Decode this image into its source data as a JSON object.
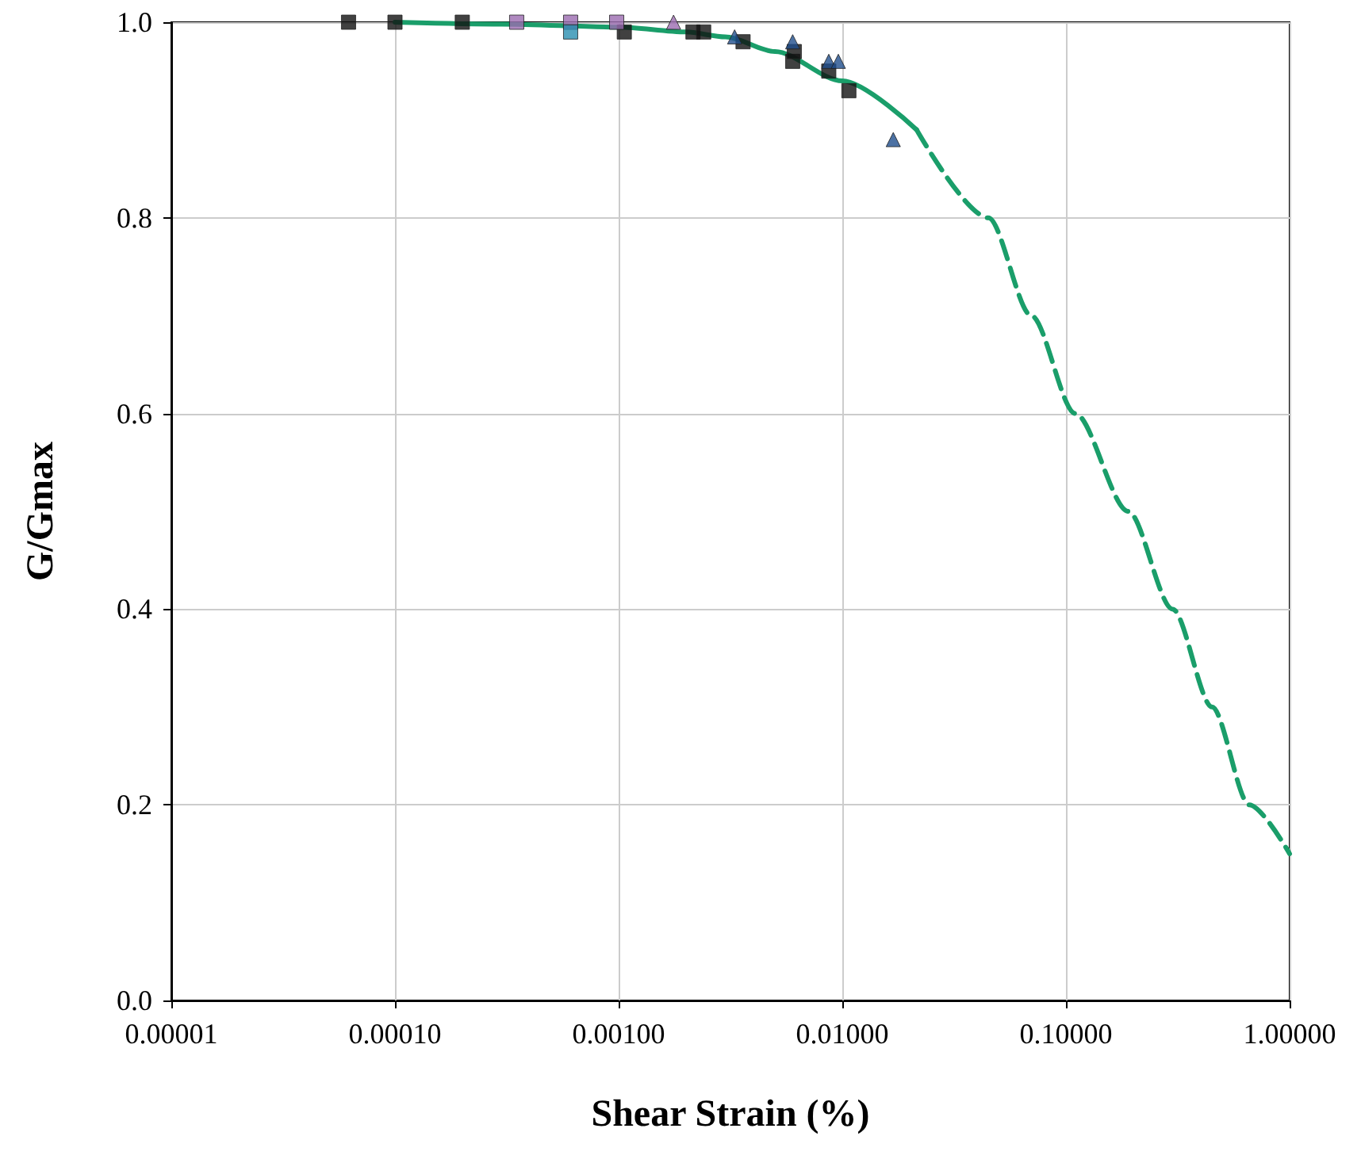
{
  "chart_data": {
    "type": "scatter",
    "xlabel": "Shear Strain (%)",
    "ylabel": "G/Gmax",
    "log": "x",
    "grid": true,
    "xlim": [
      1e-05,
      1
    ],
    "xticks": [
      {
        "value": 1e-05,
        "label": "0.00001"
      },
      {
        "value": 0.0001,
        "label": "0.00010"
      },
      {
        "value": 0.001,
        "label": "0.00100"
      },
      {
        "value": 0.01,
        "label": "0.01000"
      },
      {
        "value": 0.1,
        "label": "0.10000"
      },
      {
        "value": 1,
        "label": "1.00000"
      }
    ],
    "ylim": [
      0,
      1
    ],
    "yticks": [
      {
        "value": 0,
        "label": "0.0"
      },
      {
        "value": 0.2,
        "label": "0.2"
      },
      {
        "value": 0.4,
        "label": "0.4"
      },
      {
        "value": 0.6,
        "label": "0.6"
      },
      {
        "value": 0.8,
        "label": "0.8"
      },
      {
        "value": 1,
        "label": "1.0"
      }
    ],
    "series": [
      {
        "type": "line",
        "color": "#1a9e6a",
        "marker": "none",
        "line_style": "solid",
        "x": [
          0.0001,
          0.0003,
          0.001,
          0.002,
          0.003,
          0.005,
          0.01,
          0.0215
        ],
        "values": [
          1.0,
          0.998,
          0.995,
          0.99,
          0.985,
          0.97,
          0.94,
          0.89
        ]
      },
      {
        "type": "line",
        "color": "#1a9e6a",
        "marker": "none",
        "line_style": "dashed",
        "x": [
          0.0215,
          0.045,
          0.07,
          0.11,
          0.19,
          0.3,
          0.45,
          0.66,
          1
        ],
        "values": [
          0.89,
          0.8,
          0.7,
          0.6,
          0.5,
          0.4,
          0.3,
          0.2,
          0.15
        ]
      },
      {
        "color": "#111111",
        "marker": "square",
        "x": [
          6.2e-05,
          0.0001,
          0.0002,
          0.00106,
          0.00215,
          0.0024,
          0.0036,
          0.006,
          0.0061,
          0.0087,
          0.0107
        ],
        "values": [
          1.0,
          1.0,
          1.0,
          0.99,
          0.99,
          0.99,
          0.98,
          0.96,
          0.97,
          0.95,
          0.93
        ]
      },
      {
        "color": "#9b6bb0",
        "marker": "square",
        "x": [
          0.00035,
          0.00061,
          0.00098
        ],
        "values": [
          1.0,
          1.0,
          1.0
        ]
      },
      {
        "color": "#9b6bb0",
        "marker": "triangle",
        "x": [
          0.00176
        ],
        "values": [
          1.0
        ]
      },
      {
        "color": "#2a8fb0",
        "marker": "square",
        "x": [
          0.00061
        ],
        "values": [
          0.99
        ]
      },
      {
        "color": "#1f4e8c",
        "marker": "triangle",
        "x": [
          0.0033,
          0.006,
          0.0087,
          0.0096,
          0.0169
        ],
        "values": [
          0.985,
          0.98,
          0.96,
          0.96,
          0.88
        ]
      }
    ]
  }
}
